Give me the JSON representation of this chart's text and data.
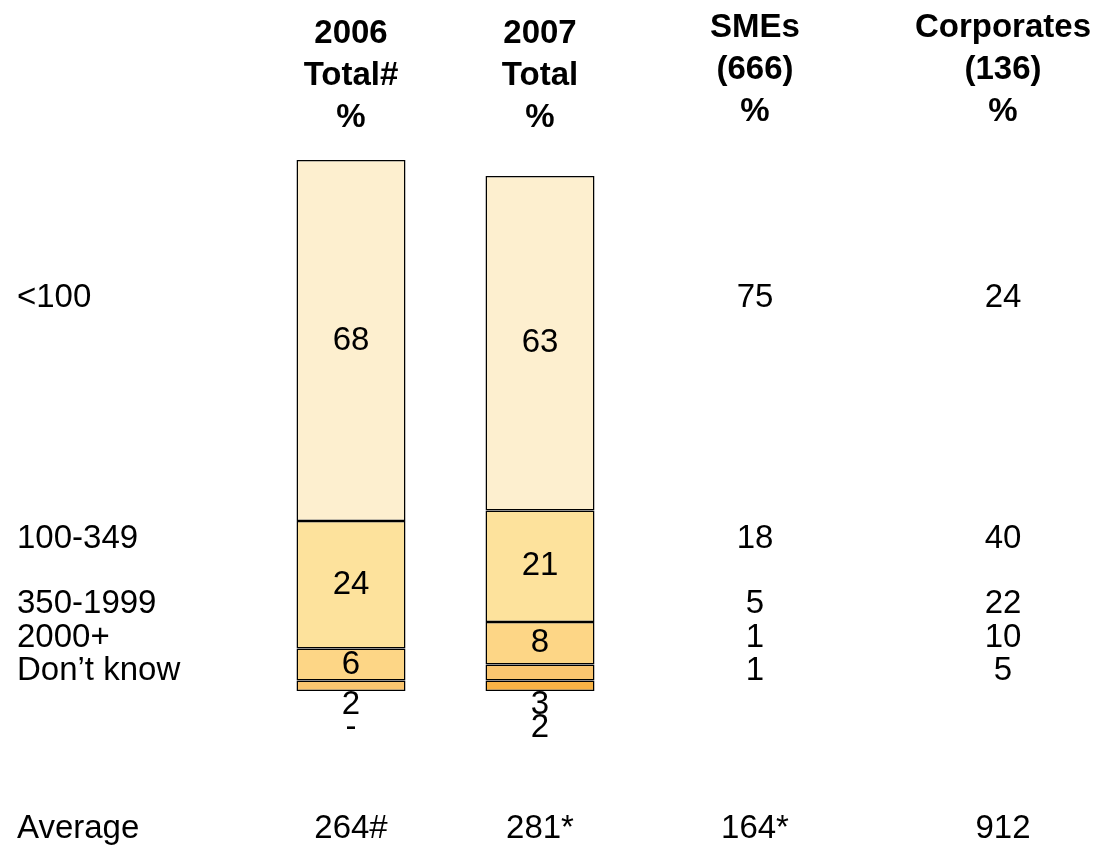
{
  "chart_data": [
    {
      "type": "bar",
      "stacked": true,
      "categories": [
        "2006\nTotal#\n%",
        "2007\nTotal\n%"
      ],
      "ylim": [
        0,
        100
      ],
      "series": [
        {
          "color": "#f9b345",
          "values": [
            null,
            2
          ],
          "value_labels": [
            "-",
            "2"
          ]
        },
        {
          "color": "#fbc66f",
          "values": [
            2,
            3
          ]
        },
        {
          "color": "#fdd686",
          "values": [
            6,
            8
          ]
        },
        {
          "color": "#fde29c",
          "values": [
            24,
            21
          ]
        },
        {
          "color": "#fdefcf",
          "values": [
            68,
            63
          ]
        }
      ],
      "data_labels": true
    },
    {
      "type": "other",
      "categories": [
        "SMEs\n(666)\n%",
        "Corporates\n(136)\n%"
      ],
      "series": [
        {
          "name": "<100",
          "values": [
            75,
            24
          ]
        },
        {
          "name": "100-349",
          "values": [
            18,
            40
          ]
        },
        {
          "name": "350-1999",
          "values": [
            5,
            22
          ]
        },
        {
          "name": "2000+",
          "values": [
            1,
            10
          ]
        },
        {
          "name": "Don’t know",
          "values": [
            1,
            5
          ]
        }
      ],
      "data_labels": true
    },
    {
      "type": "other",
      "categories": [
        null,
        null,
        null,
        null
      ],
      "series": [
        {
          "name": "Average",
          "values": [
            264,
            281,
            164,
            912
          ],
          "value_labels": [
            "264#",
            "281*",
            "164*",
            "912"
          ]
        }
      ]
    }
  ]
}
